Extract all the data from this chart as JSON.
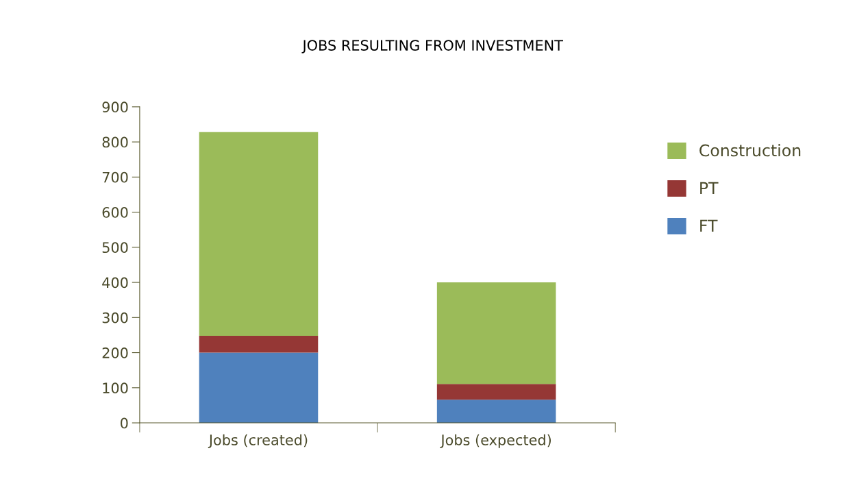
{
  "chart_data": {
    "type": "bar",
    "title": "JOBS RESULTING FROM INVESTMENT",
    "stacked": true,
    "categories": [
      "Jobs (created)",
      "Jobs (expected)"
    ],
    "series": [
      {
        "name": "FT",
        "color": "#4f81bd",
        "values": [
          200,
          66
        ]
      },
      {
        "name": "PT",
        "color": "#953735",
        "values": [
          48,
          45
        ]
      },
      {
        "name": "Construction",
        "color": "#9bbb59",
        "values": [
          580,
          289
        ]
      }
    ],
    "ylim": [
      0,
      900
    ],
    "yticks": [
      0,
      100,
      200,
      300,
      400,
      500,
      600,
      700,
      800,
      900
    ],
    "legend": "right",
    "grid": false
  }
}
